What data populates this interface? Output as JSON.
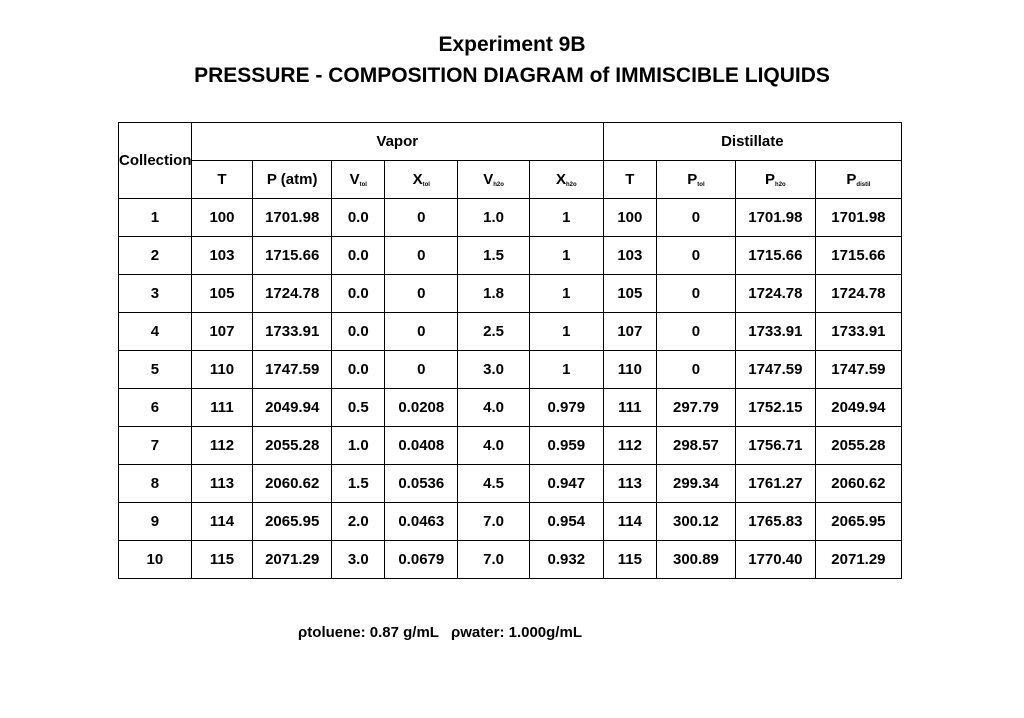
{
  "title": "Experiment 9B",
  "subtitle": "PRESSURE - COMPOSITION DIAGRAM of IMMISCIBLE LIQUIDS",
  "table": {
    "collection_label": "Collection",
    "groups": [
      "Vapor",
      "Distillate"
    ],
    "columns": [
      {
        "main": "T",
        "sub": ""
      },
      {
        "main": "P (atm)",
        "sub": ""
      },
      {
        "main": "V",
        "sub": "tol"
      },
      {
        "main": "X",
        "sub": "tol"
      },
      {
        "main": "V",
        "sub": "h2o"
      },
      {
        "main": "X",
        "sub": "h2o"
      },
      {
        "main": "T",
        "sub": ""
      },
      {
        "main": "P",
        "sub": "tol"
      },
      {
        "main": "P",
        "sub": "h2o"
      },
      {
        "main": "P",
        "sub": "distil"
      }
    ],
    "rows": [
      [
        "1",
        "100",
        "1701.98",
        "0.0",
        "0",
        "1.0",
        "1",
        "100",
        "0",
        "1701.98",
        "1701.98"
      ],
      [
        "2",
        "103",
        "1715.66",
        "0.0",
        "0",
        "1.5",
        "1",
        "103",
        "0",
        "1715.66",
        "1715.66"
      ],
      [
        "3",
        "105",
        "1724.78",
        "0.0",
        "0",
        "1.8",
        "1",
        "105",
        "0",
        "1724.78",
        "1724.78"
      ],
      [
        "4",
        "107",
        "1733.91",
        "0.0",
        "0",
        "2.5",
        "1",
        "107",
        "0",
        "1733.91",
        "1733.91"
      ],
      [
        "5",
        "110",
        "1747.59",
        "0.0",
        "0",
        "3.0",
        "1",
        "110",
        "0",
        "1747.59",
        "1747.59"
      ],
      [
        "6",
        "111",
        "2049.94",
        "0.5",
        "0.0208",
        "4.0",
        "0.979",
        "111",
        "297.79",
        "1752.15",
        "2049.94"
      ],
      [
        "7",
        "112",
        "2055.28",
        "1.0",
        "0.0408",
        "4.0",
        "0.959",
        "112",
        "298.57",
        "1756.71",
        "2055.28"
      ],
      [
        "8",
        "113",
        "2060.62",
        "1.5",
        "0.0536",
        "4.5",
        "0.947",
        "113",
        "299.34",
        "1761.27",
        "2060.62"
      ],
      [
        "9",
        "114",
        "2065.95",
        "2.0",
        "0.0463",
        "7.0",
        "0.954",
        "114",
        "300.12",
        "1765.83",
        "2065.95"
      ],
      [
        "10",
        "115",
        "2071.29",
        "3.0",
        "0.0679",
        "7.0",
        "0.932",
        "115",
        "300.89",
        "1770.40",
        "2071.29"
      ]
    ]
  },
  "footer": {
    "toluene_density": "ρtoluene: 0.87 g/mL",
    "water_density": "ρwater:  1.000g/mL"
  }
}
